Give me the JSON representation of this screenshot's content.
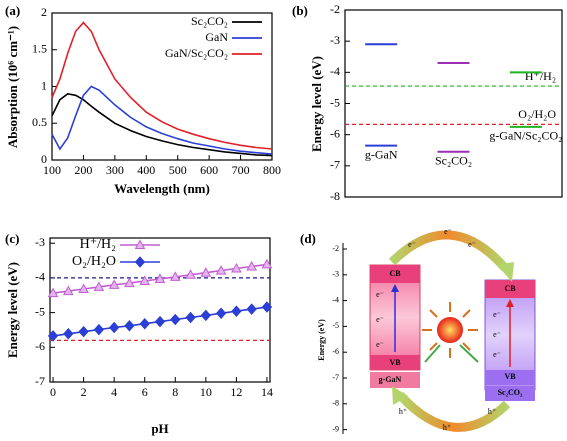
{
  "chart_data": [
    {
      "type": "line",
      "panel": "(a)",
      "xlabel": "Wavelength (nm)",
      "ylabel": "Absorption (10⁶ cm⁻¹)",
      "x": [
        100,
        125,
        150,
        175,
        200,
        225,
        250,
        300,
        350,
        400,
        450,
        500,
        550,
        600,
        650,
        700,
        750,
        800
      ],
      "series": [
        {
          "name": "Sc₂CO₂",
          "color": "#000000",
          "values": [
            0.6,
            0.82,
            0.9,
            0.88,
            0.82,
            0.73,
            0.65,
            0.5,
            0.4,
            0.32,
            0.26,
            0.21,
            0.17,
            0.14,
            0.11,
            0.09,
            0.07,
            0.06
          ]
        },
        {
          "name": "GaN",
          "color": "#2b3fd6",
          "values": [
            0.35,
            0.15,
            0.3,
            0.6,
            0.88,
            1.0,
            0.95,
            0.75,
            0.58,
            0.45,
            0.36,
            0.29,
            0.23,
            0.19,
            0.15,
            0.12,
            0.1,
            0.08
          ]
        },
        {
          "name": "GaN/Sc₂CO₂",
          "color": "#e0202a",
          "values": [
            0.85,
            1.1,
            1.45,
            1.75,
            1.87,
            1.75,
            1.5,
            1.1,
            0.85,
            0.65,
            0.52,
            0.42,
            0.35,
            0.29,
            0.24,
            0.2,
            0.17,
            0.15
          ]
        }
      ],
      "xlim": [
        100,
        800
      ],
      "xticks": [
        100,
        200,
        300,
        400,
        500,
        600,
        700,
        800
      ],
      "ylim": [
        0,
        2
      ],
      "yticks": [
        0,
        0.5,
        1,
        1.5,
        2
      ],
      "legend": "upper right"
    },
    {
      "type": "level",
      "panel": "(b)",
      "ylabel": "Energy level (eV)",
      "series": [
        {
          "name": "g-GaN",
          "color": "#2b3fd6",
          "values": [
            -3.1,
            -6.35
          ]
        },
        {
          "name": "Sc₂CO₂",
          "color": "#9b2fb5",
          "values": [
            -3.7,
            -6.55
          ]
        },
        {
          "name": "g-GaN/Sc₂CO₂",
          "color": "#1fb51f",
          "values": [
            -4.0,
            -5.75
          ]
        }
      ],
      "references": [
        {
          "name": "H⁺/H₂",
          "color": "#1fb51f",
          "value": -4.44
        },
        {
          "name": "O₂/H₂O",
          "color": "#e0202a",
          "value": -5.67
        }
      ],
      "ylim": [
        -8,
        -2
      ],
      "yticks": [
        -8,
        -7,
        -6,
        -5,
        -4,
        -3,
        -2
      ]
    },
    {
      "type": "line",
      "panel": "(c)",
      "xlabel": "pH",
      "ylabel": "Energy level (eV)",
      "x": [
        0,
        1,
        2,
        3,
        4,
        5,
        6,
        7,
        8,
        9,
        10,
        11,
        12,
        13,
        14
      ],
      "series": [
        {
          "name": "H⁺/H₂",
          "color": "#c15fd0",
          "marker": "triangle",
          "values": [
            -4.44,
            -4.38,
            -4.32,
            -4.26,
            -4.2,
            -4.15,
            -4.09,
            -4.03,
            -3.97,
            -3.91,
            -3.85,
            -3.79,
            -3.73,
            -3.67,
            -3.61
          ]
        },
        {
          "name": "O₂/H₂O",
          "color": "#2b3fd6",
          "marker": "diamond",
          "values": [
            -5.67,
            -5.61,
            -5.55,
            -5.49,
            -5.43,
            -5.38,
            -5.32,
            -5.26,
            -5.2,
            -5.14,
            -5.08,
            -5.02,
            -4.96,
            -4.9,
            -4.84
          ]
        }
      ],
      "references": [
        {
          "color": "#1a1a8c",
          "value": -4.0
        },
        {
          "color": "#e0202a",
          "value": -5.8
        }
      ],
      "xlim": [
        -0.2,
        14.2
      ],
      "xticks": [
        0,
        2,
        4,
        6,
        8,
        10,
        12,
        14
      ],
      "ylim": [
        -7,
        -2.85
      ],
      "yticks": [
        -7,
        -6,
        -5,
        -4,
        -3
      ],
      "legend": "upper left"
    }
  ],
  "diagram": {
    "panel": "(d)",
    "ylabel": "Energy (eV)",
    "yticks": [
      -2,
      -3,
      -4,
      -5,
      -6,
      -7,
      -8,
      -9
    ],
    "cb": "CB",
    "vb": "VB",
    "electron": "e⁻",
    "hole": "h⁺",
    "left": "g-GaN",
    "right": "Sc₂CO₂"
  }
}
